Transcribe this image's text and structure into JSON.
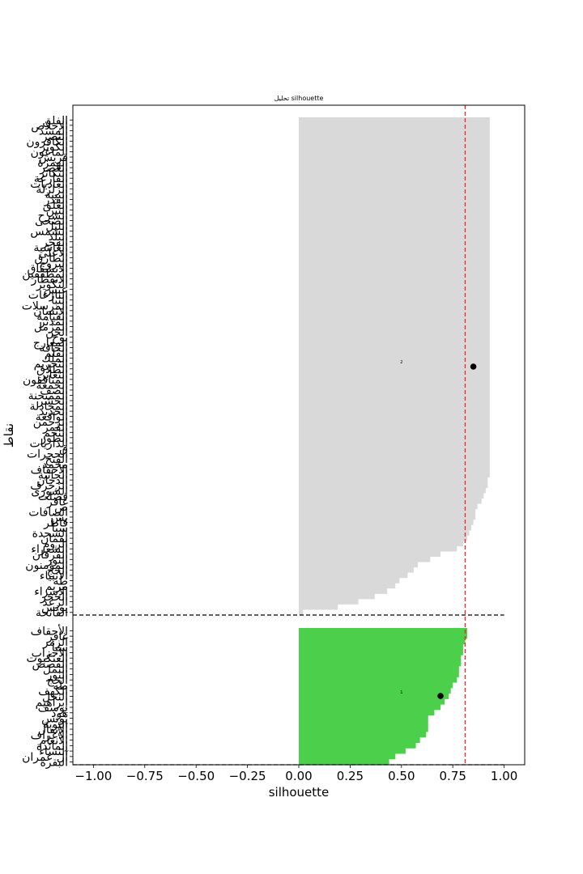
{
  "chart_data": {
    "type": "silhouette",
    "title": "تحليل silhouette",
    "xlabel": "silhouette",
    "ylabel": "نقاط",
    "xlim": [
      -1.1,
      1.1
    ],
    "x_ticks": [
      -1.0,
      -0.75,
      -0.5,
      -0.25,
      0.0,
      0.25,
      0.5,
      0.75,
      1.0
    ],
    "x_tick_labels": [
      "−1.00",
      "−0.75",
      "−0.50",
      "−0.25",
      "0.00",
      "0.25",
      "0.50",
      "0.75",
      "1.00"
    ],
    "grid": false,
    "average_silhouette": 0.81,
    "clusters": [
      {
        "id": "cluster-2",
        "label": "2",
        "color": "#d9d9d9",
        "centroid_score": 0.85,
        "labels": [
          "الفلق",
          "الإخلاص",
          "المسد",
          "النصر",
          "الكافرون",
          "الكوثر",
          "الماعون",
          "قريش",
          "الهمزة",
          "العصر",
          "التكاثر",
          "القارعة",
          "العاديات",
          "الزلزلة",
          "البينة",
          "القدر",
          "العلق",
          "التين",
          "الشرح",
          "الضحى",
          "الليل",
          "الشمس",
          "البلد",
          "الفجر",
          "الغاشية",
          "الأعلى",
          "الطارق",
          "البروج",
          "الانشقاق",
          "المطففين",
          "الانفطار",
          "التكوير",
          "عبس",
          "النازعات",
          "النبأ",
          "المرسلات",
          "الإنسان",
          "القيامة",
          "المدثر",
          "المزمل",
          "الجن",
          "نوح",
          "المعارج",
          "الحاقة",
          "القلم",
          "الملك",
          "التحريم",
          "الطلاق",
          "التغابن",
          "المنافقون",
          "الجمعة",
          "الصف",
          "الممتحنة",
          "الحشر",
          "المجادلة",
          "الحديد",
          "الواقعة",
          "الرحمن",
          "القمر",
          "النجم",
          "الطور",
          "الذاريات",
          "ق",
          "الحجرات",
          "الفتح",
          "محمد",
          "الأحقاف",
          "الجاثية",
          "الدخان",
          "الزخرف",
          "الشورى",
          "فصلت",
          "غافر",
          "ص",
          "الصافات",
          "يس",
          "فاطر",
          "سبأ",
          "السجدة",
          "لقمان",
          "الروم",
          "الشعراء",
          "الفرقان",
          "النور",
          "المؤمنون",
          "الحج",
          "الأنبياء",
          "طه",
          "مريم",
          "الإسراء",
          "الحجر",
          "الرعد",
          "يونس",
          "الفاتحة"
        ],
        "values": [
          0.93,
          0.93,
          0.93,
          0.93,
          0.93,
          0.93,
          0.93,
          0.93,
          0.93,
          0.93,
          0.93,
          0.93,
          0.93,
          0.93,
          0.93,
          0.93,
          0.93,
          0.93,
          0.93,
          0.93,
          0.93,
          0.93,
          0.93,
          0.93,
          0.93,
          0.93,
          0.93,
          0.93,
          0.93,
          0.93,
          0.93,
          0.93,
          0.93,
          0.93,
          0.93,
          0.93,
          0.93,
          0.93,
          0.93,
          0.93,
          0.93,
          0.93,
          0.93,
          0.93,
          0.93,
          0.93,
          0.93,
          0.93,
          0.93,
          0.93,
          0.93,
          0.93,
          0.93,
          0.93,
          0.93,
          0.93,
          0.93,
          0.93,
          0.93,
          0.93,
          0.93,
          0.93,
          0.93,
          0.93,
          0.93,
          0.93,
          0.93,
          0.93,
          0.92,
          0.92,
          0.91,
          0.9,
          0.89,
          0.87,
          0.86,
          0.86,
          0.85,
          0.84,
          0.83,
          0.82,
          0.8,
          0.77,
          0.69,
          0.64,
          0.58,
          0.56,
          0.53,
          0.49,
          0.47,
          0.43,
          0.37,
          0.29,
          0.19,
          0.02
        ]
      },
      {
        "id": "cluster-1",
        "label": "1",
        "color": "#4cd04c",
        "centroid_score": 0.69,
        "labels": [
          "الأحقاف",
          "غافر",
          "الزمر",
          "سبأ",
          "الأحزاب",
          "العنكبوت",
          "القصص",
          "النمل",
          "النور",
          "الحج",
          "طه",
          "الكهف",
          "النحل",
          "إبراهيم",
          "يوسف",
          "هود",
          "يونس",
          "التوبة",
          "الأنفال",
          "الأعراف",
          "الأنعام",
          "المائدة",
          "النساء",
          "آل عمران",
          "البقرة"
        ],
        "values": [
          0.82,
          0.82,
          0.81,
          0.8,
          0.8,
          0.79,
          0.79,
          0.78,
          0.78,
          0.77,
          0.75,
          0.74,
          0.73,
          0.71,
          0.69,
          0.66,
          0.63,
          0.63,
          0.63,
          0.62,
          0.59,
          0.57,
          0.52,
          0.47,
          0.44
        ]
      }
    ]
  }
}
